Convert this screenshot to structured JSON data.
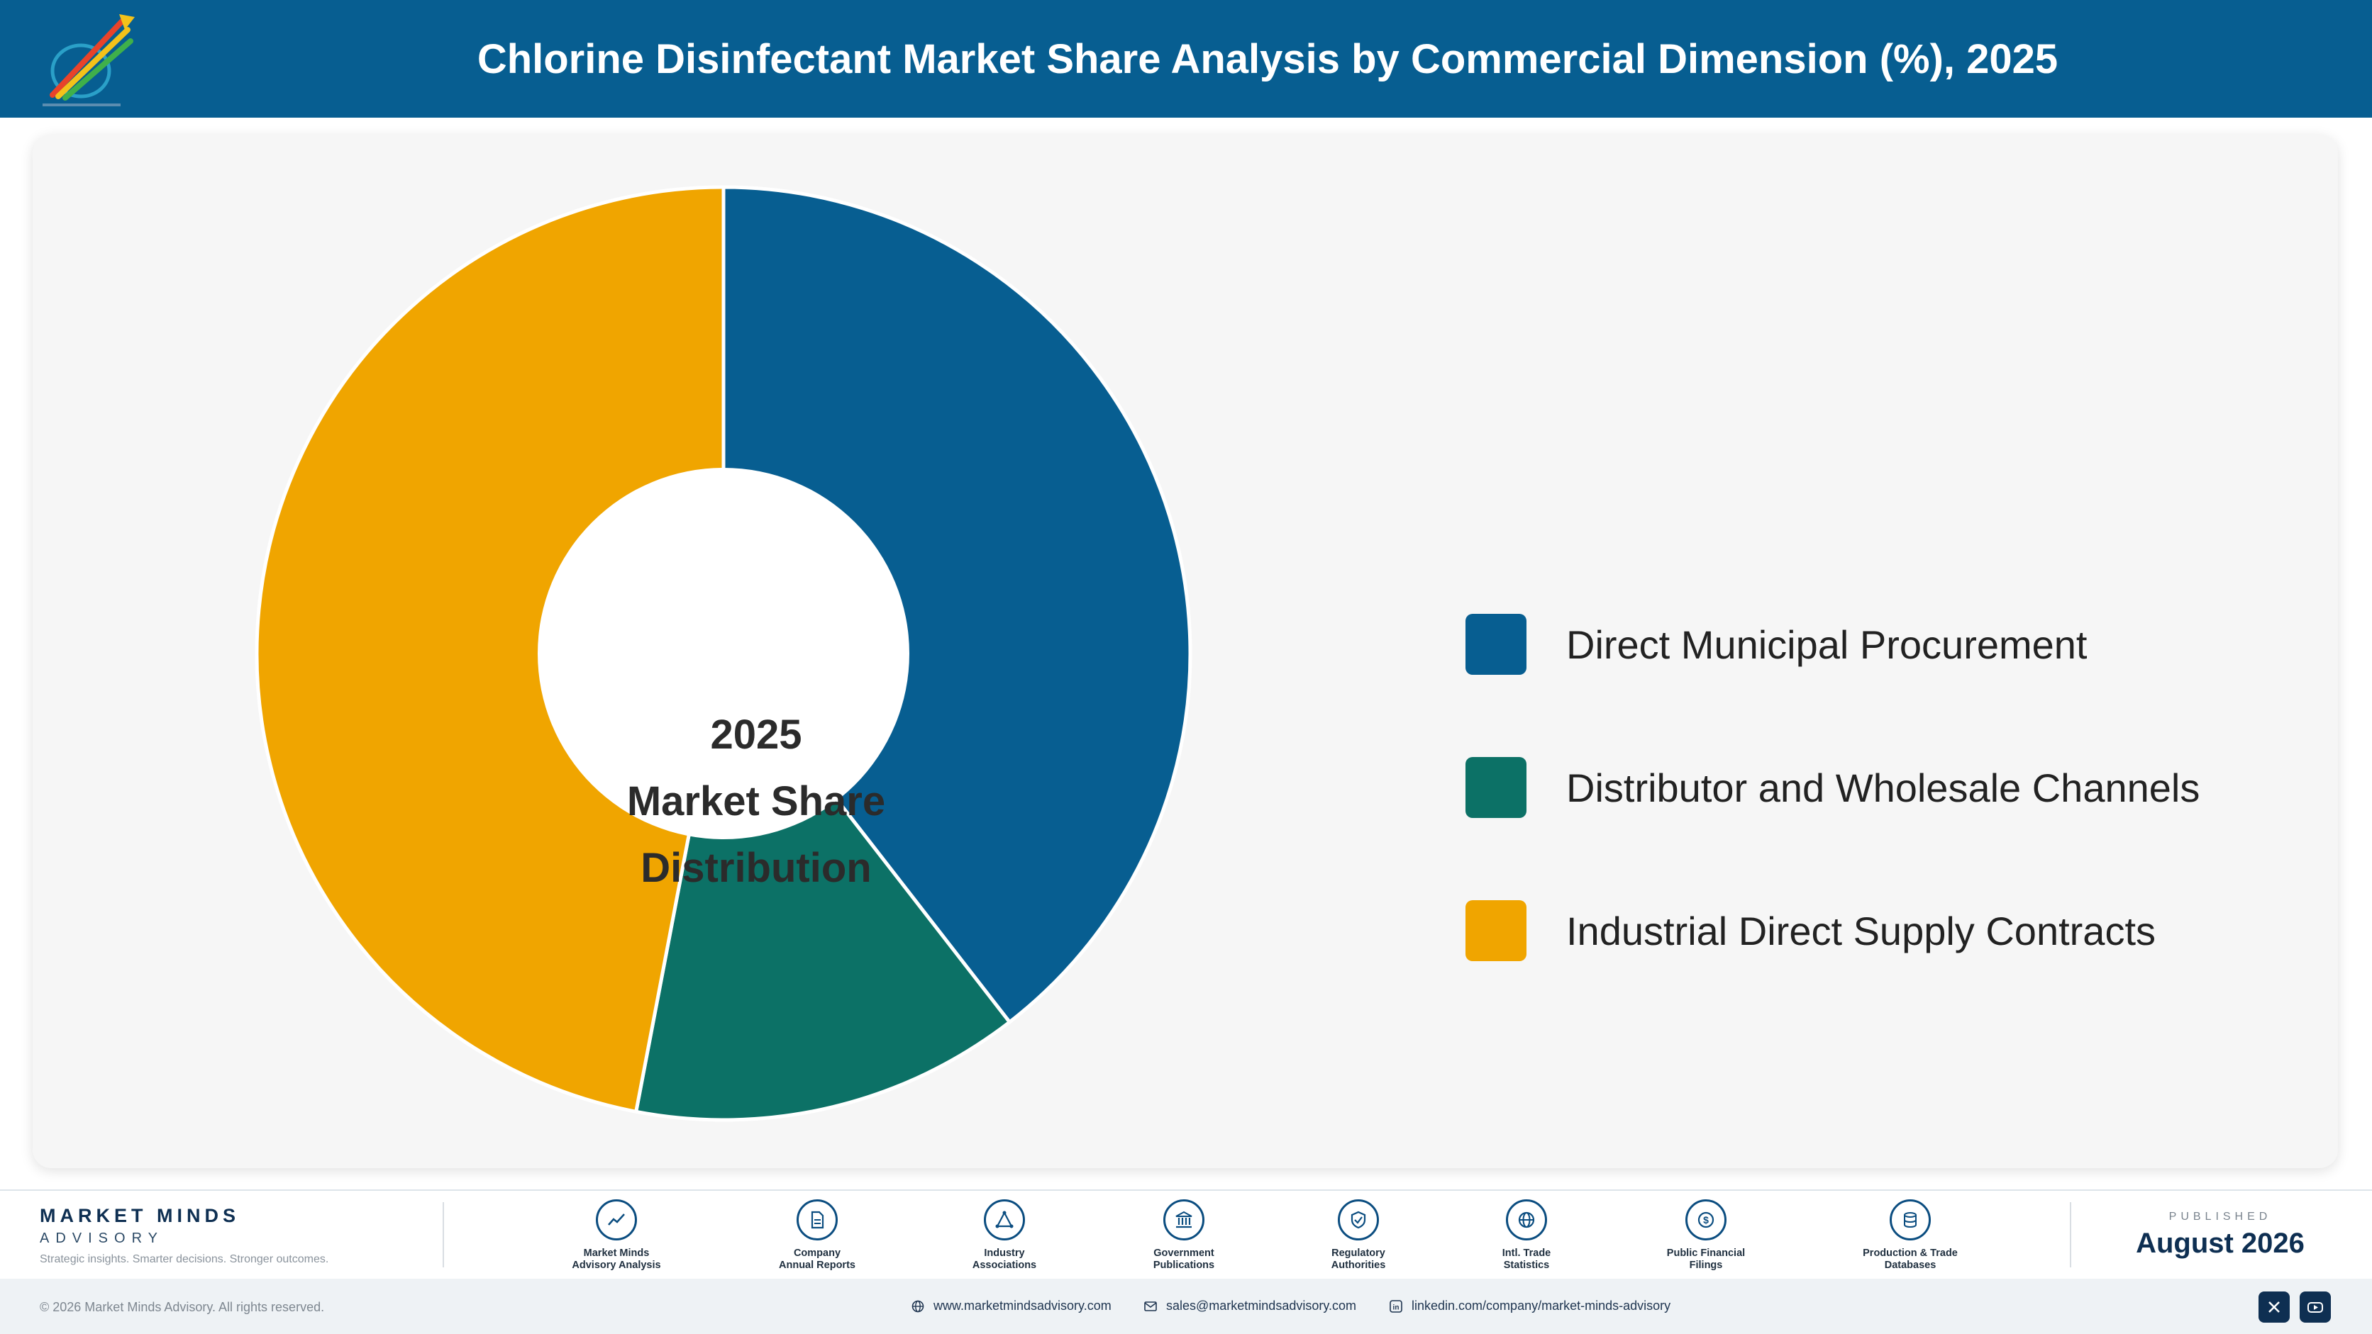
{
  "header": {
    "title": "Chlorine Disinfectant Market Share Analysis by Commercial Dimension (%), 2025",
    "logo_icon": "market-minds-logo"
  },
  "chart_data": {
    "type": "pie",
    "subtype": "donut",
    "title": "Chlorine Disinfectant Market Share Analysis by Commercial Dimension (%), 2025",
    "center_label": [
      "2025",
      "Market Share",
      "Distribution"
    ],
    "categories": [
      "Direct Municipal Procurement",
      "Distributor and Wholesale Channels",
      "Industrial Direct Supply Contracts"
    ],
    "values": [
      39.5,
      13.5,
      47.0
    ],
    "colors": [
      "#075e91",
      "#0c7166",
      "#f0a500"
    ],
    "legend_position": "right"
  },
  "footer": {
    "brand_name": "MARKET MINDS",
    "brand_sub": "ADVISORY",
    "brand_tagline": "Strategic insights. Smarter decisions. Stronger outcomes.",
    "sources": [
      {
        "line1": "Market Minds",
        "line2": "Advisory Analysis",
        "icon": "trend-line-icon"
      },
      {
        "line1": "Company",
        "line2": "Annual Reports",
        "icon": "document-icon"
      },
      {
        "line1": "Industry",
        "line2": "Associations",
        "icon": "network-icon"
      },
      {
        "line1": "Government",
        "line2": "Publications",
        "icon": "government-building-icon"
      },
      {
        "line1": "Regulatory",
        "line2": "Authorities",
        "icon": "shield-check-icon"
      },
      {
        "line1": "Intl. Trade",
        "line2": "Statistics",
        "icon": "globe-icon"
      },
      {
        "line1": "Public Financial",
        "line2": "Filings",
        "icon": "dollar-coin-icon"
      },
      {
        "line1": "Production & Trade",
        "line2": "Databases",
        "icon": "database-icon"
      }
    ],
    "published_label": "PUBLISHED",
    "published_date": "August 2026"
  },
  "bottom_bar": {
    "copyright": "© 2026 Market Minds Advisory. All rights reserved.",
    "website": "www.marketmindsadvisory.com",
    "email": "sales@marketmindsadvisory.com",
    "linkedin": "linkedin.com/company/market-minds-advisory",
    "social_icons": [
      "x-icon",
      "youtube-icon"
    ]
  }
}
